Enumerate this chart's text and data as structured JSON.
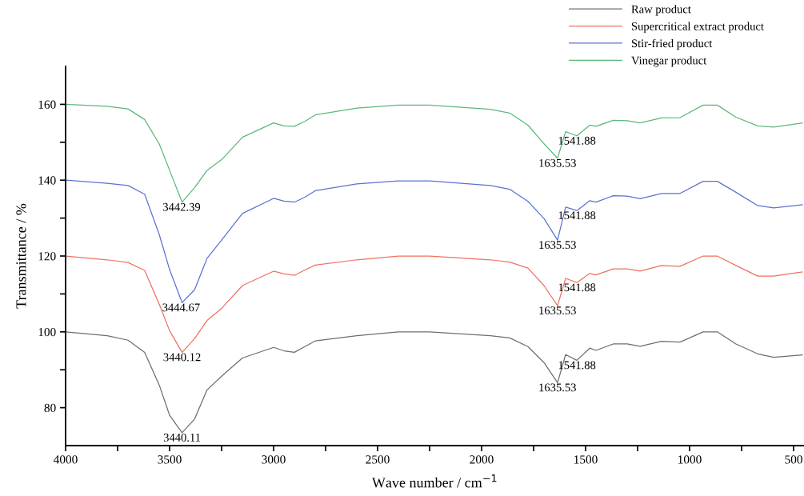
{
  "chart_data": {
    "type": "line",
    "xlabel": "Wave number / cm$^{−1}$",
    "ylabel": "Transmittance / %",
    "x": [
      4000,
      3800,
      3700,
      3620,
      3550,
      3500,
      3440,
      3380,
      3320,
      3250,
      3150,
      3000,
      2950,
      2900,
      2850,
      2800,
      2600,
      2400,
      2250,
      1958,
      1865,
      1777,
      1700,
      1635,
      1596,
      1542,
      1480,
      1450,
      1367,
      1300,
      1238,
      1135,
      1046,
      935,
      867,
      777,
      673,
      596,
      458
    ],
    "series": [
      {
        "name": "Raw product",
        "color": "#6e6e6e",
        "values": [
          100,
          99,
          97.8,
          94.6,
          86,
          78,
          73.4,
          77,
          84.7,
          88.3,
          93.1,
          95.9,
          95,
          94.6,
          96.1,
          97.6,
          99,
          100,
          100,
          99,
          98.4,
          96.1,
          91.9,
          86.6,
          94,
          92.5,
          95.7,
          95.1,
          96.8,
          96.8,
          96.2,
          97.5,
          97.3,
          100,
          100,
          96.8,
          94.2,
          93.3,
          93.9
        ]
      },
      {
        "name": "Supercritical extract product",
        "color": "#f07060",
        "values": [
          120,
          119,
          118.3,
          116.2,
          107.3,
          100.3,
          94.6,
          98.2,
          103,
          106.2,
          112.2,
          116,
          115.3,
          114.9,
          116.3,
          117.6,
          119,
          120,
          120,
          119,
          118.4,
          116.8,
          112.2,
          106.9,
          114.1,
          113,
          115.4,
          115,
          116.6,
          116.6,
          116,
          117.5,
          117.3,
          120,
          120,
          117.5,
          114.7,
          114.7,
          115.8
        ]
      },
      {
        "name": "Stir-fried product",
        "color": "#5b72d0",
        "values": [
          140,
          139.2,
          138.6,
          136.3,
          125.7,
          116.4,
          107.7,
          111.1,
          119.4,
          124.2,
          131.2,
          135.2,
          134.5,
          134.2,
          135.5,
          137.2,
          139,
          139.8,
          139.8,
          138.6,
          137.6,
          134.4,
          129.9,
          124.2,
          132.9,
          132,
          134.6,
          134.2,
          135.9,
          135.8,
          135.1,
          136.5,
          136.5,
          139.7,
          139.7,
          136.8,
          133.3,
          132.7,
          133.5
        ]
      },
      {
        "name": "Vinegar product",
        "color": "#5cb87a",
        "values": [
          160,
          159.5,
          158.8,
          156,
          149.6,
          142.6,
          134.2,
          138,
          142.6,
          145.4,
          151.3,
          155.1,
          154.3,
          154.2,
          155.5,
          157.2,
          159,
          159.8,
          159.8,
          158.7,
          157.7,
          154.5,
          149.6,
          145.8,
          152.8,
          151.7,
          154.5,
          154.2,
          155.8,
          155.7,
          155.1,
          156.4,
          156.5,
          159.8,
          159.8,
          156.6,
          154.3,
          154,
          155.1
        ]
      }
    ],
    "xlim": [
      4000,
      450
    ],
    "xticks": [
      4000,
      {
        "value": 3750,
        "label": null
      },
      3500,
      {
        "value": 3250,
        "label": null
      },
      3000,
      {
        "value": 2750,
        "label": null
      },
      2500,
      {
        "value": 2250,
        "label": null
      },
      2000,
      {
        "value": 1750,
        "label": null
      },
      1500,
      {
        "value": 1250,
        "label": null
      },
      1000,
      {
        "value": 750,
        "label": null
      },
      500
    ],
    "ylim": [
      70,
      170
    ],
    "yticks": [
      80,
      {
        "value": 90,
        "label": null
      },
      100,
      {
        "value": 110,
        "label": null
      },
      120,
      {
        "value": 130,
        "label": null
      },
      140,
      {
        "value": 150,
        "label": null
      },
      160
    ],
    "annotations": [
      {
        "text": "3440.11",
        "x": 3440.11,
        "y": 73.4
      },
      {
        "text": "3440.12",
        "x": 3440.12,
        "y": 94.6
      },
      {
        "text": "3444.67",
        "x": 3444.67,
        "y": 107.7
      },
      {
        "text": "3442.39",
        "x": 3442.39,
        "y": 134.2
      },
      {
        "text": "1635.53",
        "x": 1635.53,
        "y": 86.6
      },
      {
        "text": "1541.88",
        "x": 1541.88,
        "y": 92.5
      },
      {
        "text": "1635.53",
        "x": 1635.53,
        "y": 106.9
      },
      {
        "text": "1541.88",
        "x": 1541.88,
        "y": 113
      },
      {
        "text": "1635.53",
        "x": 1635.53,
        "y": 124.2
      },
      {
        "text": "1541.88",
        "x": 1541.88,
        "y": 132
      },
      {
        "text": "1635.53",
        "x": 1635.53,
        "y": 145.8
      },
      {
        "text": "1541.88",
        "x": 1541.88,
        "y": 151.7
      }
    ],
    "legend": "top right",
    "grid": false,
    "marker": "none",
    "line_style": "solid"
  }
}
